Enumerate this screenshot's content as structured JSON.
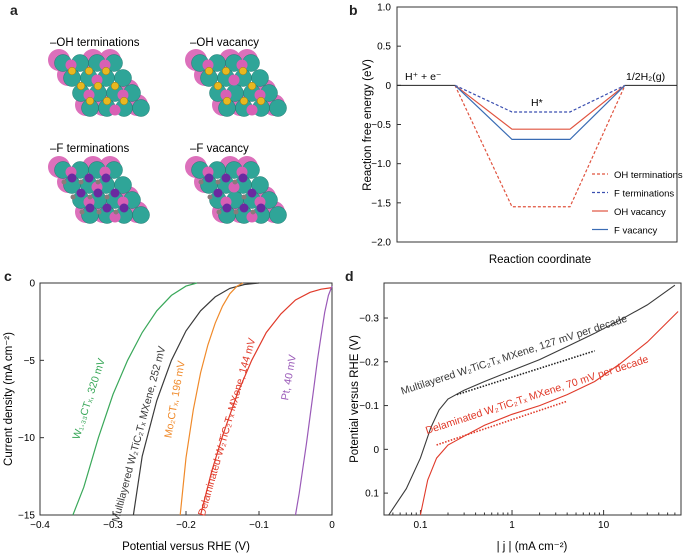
{
  "panel_labels": {
    "a": "a",
    "b": "b",
    "c": "c",
    "d": "d"
  },
  "structures": {
    "oh_term": {
      "title": "–OH terminations"
    },
    "oh_vac": {
      "title": "–OH vacancy"
    },
    "f_term": {
      "title": "–F terminations"
    },
    "f_vac": {
      "title": "–F vacancy"
    }
  },
  "colors": {
    "oh_term": "#e0533f",
    "f_term": "#3a4fb0",
    "oh_vac": "#e0533f",
    "f_vac": "#3a6cb4",
    "green": "#3aa85a",
    "black": "#3a3a3a",
    "orange": "#f08a2a",
    "red": "#e03a2a",
    "purple": "#9a5ab8",
    "dotted": "#222222",
    "atom_teal": "#2fa598",
    "atom_pink": "#d860b4",
    "atom_gold": "#e8b820",
    "atom_purple": "#6a2aa0",
    "atom_grey": "#8a7a7a"
  },
  "chart_data": [
    {
      "id": "b",
      "type": "line",
      "xlabel": "Reaction coordinate",
      "ylabel": "Reaction free energy (eV)",
      "ylim": [
        -2.0,
        1.0
      ],
      "yticks": [
        "1.0",
        "0.5",
        "0",
        "−0.5",
        "−1.0",
        "−1.5",
        "−2.0"
      ],
      "ytick_values": [
        1.0,
        0.5,
        0,
        -0.5,
        -1.0,
        -1.5,
        -2.0
      ],
      "states": {
        "left": "H⁺ + e⁻",
        "middle": "H*",
        "right": "1/2H₂(g)"
      },
      "series": [
        {
          "name": "OH terminations",
          "value": -1.55,
          "style": "dashed",
          "color": "#e0533f"
        },
        {
          "name": "F terminations",
          "value": -0.34,
          "style": "dashed",
          "color": "#3a4fb0"
        },
        {
          "name": "OH vacancy",
          "value": -0.56,
          "style": "solid",
          "color": "#e0533f"
        },
        {
          "name": "F vacancy",
          "value": -0.69,
          "style": "solid",
          "color": "#3a6cb4"
        }
      ]
    },
    {
      "id": "c",
      "type": "line",
      "xlabel": "Potential versus RHE (V)",
      "ylabel": "Current density (mA cm⁻²)",
      "xlim": [
        -0.4,
        0
      ],
      "ylim": [
        -15,
        0
      ],
      "xticks": [
        "−0.4",
        "−0.3",
        "−0.2",
        "−0.1",
        "0"
      ],
      "xtick_values": [
        -0.4,
        -0.3,
        -0.2,
        -0.1,
        0
      ],
      "yticks": [
        "0",
        "−5",
        "−10",
        "−15"
      ],
      "ytick_values": [
        0,
        -5,
        -10,
        -15
      ],
      "series": [
        {
          "name": "W₁.₃₃CTₓ, 320 mV",
          "color": "#3aa85a",
          "x": [
            -0.355,
            -0.34,
            -0.32,
            -0.3,
            -0.28,
            -0.26,
            -0.24,
            -0.22,
            -0.2,
            -0.185
          ],
          "y": [
            -15,
            -13.2,
            -10.0,
            -7.2,
            -5.0,
            -3.2,
            -1.8,
            -0.8,
            -0.2,
            0
          ]
        },
        {
          "name": "Multilayered W₂TiC₂Tₓ MXene, 252 mV",
          "color": "#3a3a3a",
          "x": [
            -0.272,
            -0.26,
            -0.24,
            -0.22,
            -0.2,
            -0.18,
            -0.16,
            -0.14,
            -0.12,
            -0.1
          ],
          "y": [
            -15,
            -11.2,
            -7.6,
            -5.0,
            -3.1,
            -1.8,
            -0.9,
            -0.35,
            -0.1,
            0
          ]
        },
        {
          "name": "Mo₂CTₓ, 196 mV",
          "color": "#f08a2a",
          "x": [
            -0.208,
            -0.2,
            -0.19,
            -0.18,
            -0.17,
            -0.16,
            -0.15,
            -0.14,
            -0.13,
            -0.122
          ],
          "y": [
            -15,
            -11.3,
            -8.2,
            -5.8,
            -4.0,
            -2.6,
            -1.5,
            -0.7,
            -0.2,
            0
          ]
        },
        {
          "name": "Delaminated-W₂TiC₂Tₓ MXene, 144 mV",
          "color": "#e03a2a",
          "x": [
            -0.18,
            -0.165,
            -0.15,
            -0.13,
            -0.11,
            -0.09,
            -0.07,
            -0.05,
            -0.03,
            -0.015,
            0
          ],
          "y": [
            -15,
            -12.2,
            -9.9,
            -7.2,
            -5.0,
            -3.2,
            -2.0,
            -1.1,
            -0.6,
            -0.4,
            -0.3
          ]
        },
        {
          "name": "Pt, 40 mV",
          "color": "#9a5ab8",
          "x": [
            -0.05,
            -0.045,
            -0.04,
            -0.035,
            -0.03,
            -0.025,
            -0.02,
            -0.015,
            -0.01,
            -0.005,
            0
          ],
          "y": [
            -15,
            -13.6,
            -12.0,
            -10.4,
            -8.6,
            -6.8,
            -5.0,
            -3.4,
            -1.9,
            -0.8,
            -0.2
          ]
        }
      ],
      "labels": {
        "green": "W₁.₃₃CTₓ, 320 mV",
        "black": "Multilayered W₂TiC₂Tₓ MXene, 252 mV",
        "orange": "Mo₂CTₓ, 196 mV",
        "red": "Delaminated-W₂TiC₂Tₓ MXene, 144 mV",
        "purple": "Pt, 40 mV"
      }
    },
    {
      "id": "d",
      "type": "line",
      "xscale": "log",
      "xlabel": "| j | (mA cm⁻²)",
      "ylabel": "Potential versus RHE (V)",
      "xlim": [
        0.04,
        70
      ],
      "ylim": [
        0.15,
        -0.38
      ],
      "xticks": [
        "0.1",
        "1",
        "10"
      ],
      "xtick_values": [
        0.1,
        1,
        10
      ],
      "yticks": [
        "−0.3",
        "−0.2",
        "−0.1",
        "0",
        "0.1"
      ],
      "ytick_values": [
        -0.3,
        -0.2,
        -0.1,
        0,
        0.1
      ],
      "series": [
        {
          "name": "Multilayered W₂TiC₂Tₓ MXene, 127 mV per decade",
          "color": "#3a3a3a",
          "x": [
            0.045,
            0.07,
            0.1,
            0.13,
            0.16,
            0.2,
            0.3,
            0.5,
            1,
            2,
            4,
            8,
            15,
            30,
            60
          ],
          "y": [
            0.15,
            0.09,
            0.02,
            -0.05,
            -0.09,
            -0.115,
            -0.135,
            -0.155,
            -0.18,
            -0.205,
            -0.235,
            -0.265,
            -0.295,
            -0.33,
            -0.375
          ]
        },
        {
          "name": "Delaminated W₂TiC₂Tₓ MXene, 70 mV per decade",
          "color": "#e03a2a",
          "x": [
            0.1,
            0.12,
            0.15,
            0.2,
            0.3,
            0.5,
            1,
            2,
            4,
            8,
            15,
            30,
            65
          ],
          "y": [
            0.15,
            0.07,
            0.02,
            -0.01,
            -0.03,
            -0.055,
            -0.08,
            -0.1,
            -0.125,
            -0.155,
            -0.195,
            -0.245,
            -0.315
          ]
        }
      ],
      "fits": [
        {
          "color": "#222222",
          "x": [
            0.25,
            8
          ],
          "y": [
            -0.125,
            -0.225
          ]
        },
        {
          "color": "#e03a2a",
          "x": [
            0.15,
            4
          ],
          "y": [
            -0.01,
            -0.11
          ]
        }
      ],
      "labels": {
        "black": "Multilayered W₂TiC₂Tₓ MXene, 127 mV per decade",
        "red": "Delaminated W₂TiC₂Tₓ MXene, 70 mV per decade"
      }
    }
  ]
}
